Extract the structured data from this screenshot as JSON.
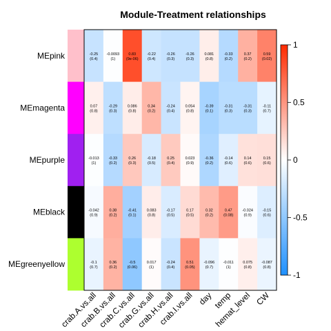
{
  "chart_data": {
    "type": "heatmap",
    "title": "Module-Treatment relationships",
    "rows": [
      "MEpink",
      "MEmagenta",
      "MEpurple",
      "MEblack",
      "MEgreenyellow"
    ],
    "row_colors": [
      "#ffc0cb",
      "#ff00ff",
      "#a020f0",
      "#000000",
      "#adff2f"
    ],
    "columns": [
      "crab.A.vs.all",
      "crab.B.vs.all",
      "crab.C.vs.all",
      "crab.G.vs.all",
      "crab.H.vs.all",
      "crab.I.vs.all",
      "day",
      "temp",
      "hemat_level",
      "CW"
    ],
    "values": [
      [
        -0.25,
        -0.0093,
        0.83,
        -0.22,
        -0.26,
        -0.26,
        0.081,
        -0.33,
        0.37,
        0.59
      ],
      [
        0.07,
        -0.29,
        0.086,
        0.34,
        -0.24,
        0.054,
        -0.39,
        -0.31,
        -0.31,
        -0.11
      ],
      [
        -0.013,
        -0.33,
        0.26,
        -0.18,
        0.25,
        0.023,
        -0.36,
        -0.14,
        0.14,
        0.15
      ],
      [
        -0.042,
        0.38,
        -0.41,
        0.083,
        -0.17,
        0.17,
        0.32,
        0.47,
        -0.024,
        -0.15
      ],
      [
        -0.1,
        0.36,
        -0.5,
        0.017,
        -0.24,
        0.51,
        -0.096,
        -0.011,
        0.075,
        -0.087
      ]
    ],
    "pvalues": [
      [
        "(0.4)",
        "(1)",
        "(9e-06)",
        "(0.4)",
        "(0.3)",
        "(0.3)",
        "(0.8)",
        "(0.2)",
        "(0.2)",
        "(0.02)"
      ],
      [
        "(0.8)",
        "(0.3)",
        "(0.8)",
        "(0.2)",
        "(0.4)",
        "(0.8)",
        "(0.1)",
        "(0.3)",
        "(0.3)",
        "(0.7)"
      ],
      [
        "(1)",
        "(0.2)",
        "(0.3)",
        "(0.5)",
        "(0.4)",
        "(0.9)",
        "(0.2)",
        "(0.6)",
        "(0.6)",
        "(0.6)"
      ],
      [
        "(0.9)",
        "(0.2)",
        "(0.1)",
        "(0.8)",
        "(0.5)",
        "(0.5)",
        "(0.2)",
        "(0.08)",
        "(0.9)",
        "(0.6)"
      ],
      [
        "(0.7)",
        "(0.2)",
        "(0.06)",
        "(1)",
        "(0.4)",
        "(0.05)",
        "(0.7)",
        "(1)",
        "(0.8)",
        "(0.8)"
      ]
    ],
    "value_labels": [
      [
        "-0.25",
        "-0.0093",
        "0.83",
        "-0.22",
        "-0.26",
        "-0.26",
        "0.081",
        "-0.33",
        "0.37",
        "0.59"
      ],
      [
        "0.07",
        "-0.29",
        "0.086",
        "0.34",
        "-0.24",
        "0.054",
        "-0.39",
        "-0.31",
        "-0.31",
        "-0.11"
      ],
      [
        "-0.013",
        "-0.33",
        "0.26",
        "-0.18",
        "0.25",
        "0.023",
        "-0.36",
        "-0.14",
        "0.14",
        "0.15"
      ],
      [
        "-0.042",
        "0.38",
        "-0.41",
        "0.083",
        "-0.17",
        "0.17",
        "0.32",
        "0.47",
        "-0.024",
        "-0.15"
      ],
      [
        "-0.1",
        "0.36",
        "-0.5",
        "0.017",
        "-0.24",
        "0.51",
        "-0.096",
        "-0.011",
        "0.075",
        "-0.087"
      ]
    ],
    "colorbar": {
      "range": [
        -1,
        1
      ],
      "ticks": [
        1,
        0.5,
        0,
        -0.5,
        -1
      ],
      "tick_labels": [
        "1",
        "0.5",
        "0",
        "-0.5",
        "-1"
      ],
      "colors": {
        "negative": "#1e90ff",
        "zero": "#ffffff",
        "positive": "#ff2b00"
      }
    }
  }
}
